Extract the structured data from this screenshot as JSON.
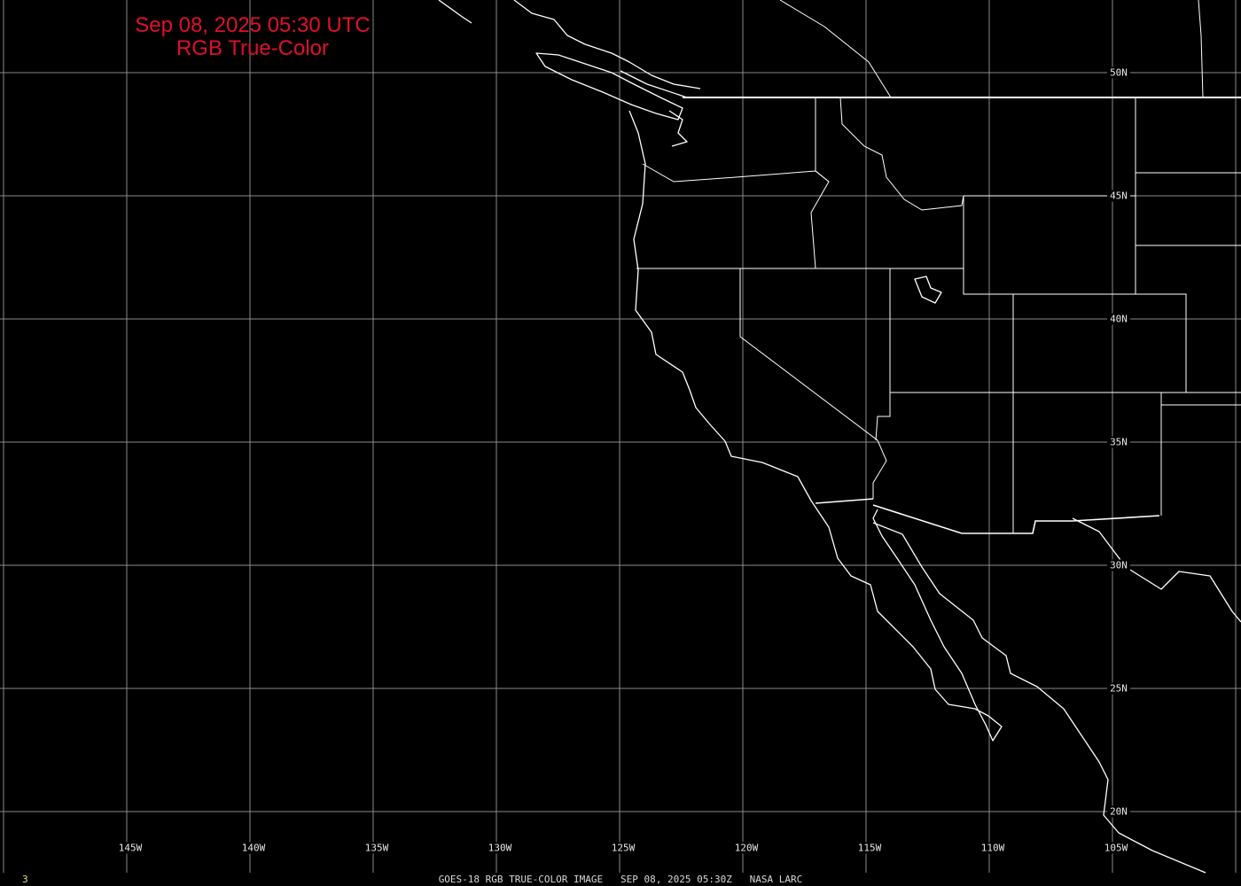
{
  "header": {
    "datetime": "Sep 08, 2025 05:30 UTC",
    "product": "RGB True-Color"
  },
  "grid": {
    "longitudes": [
      -150,
      -145,
      -140,
      -135,
      -130,
      -125,
      -120,
      -115,
      -110,
      -105,
      -100
    ],
    "latitudes": [
      50,
      45,
      40,
      35,
      30,
      25,
      20
    ],
    "lon_labels": [
      "145W",
      "140W",
      "135W",
      "130W",
      "125W",
      "120W",
      "115W",
      "110W",
      "105W"
    ],
    "lat_labels": [
      "50N",
      "45N",
      "40N",
      "35N",
      "30N",
      "25N",
      "20N"
    ]
  },
  "footer": {
    "frame": "3",
    "caption": "GOES-18 RGB TRUE-COLOR IMAGE   SEP 08, 2025 05:30Z   NASA LARC"
  },
  "colors": {
    "title": "#e0102a",
    "grid": "#8a8a8a",
    "coastline": "#ffffff",
    "background": "#000000"
  }
}
